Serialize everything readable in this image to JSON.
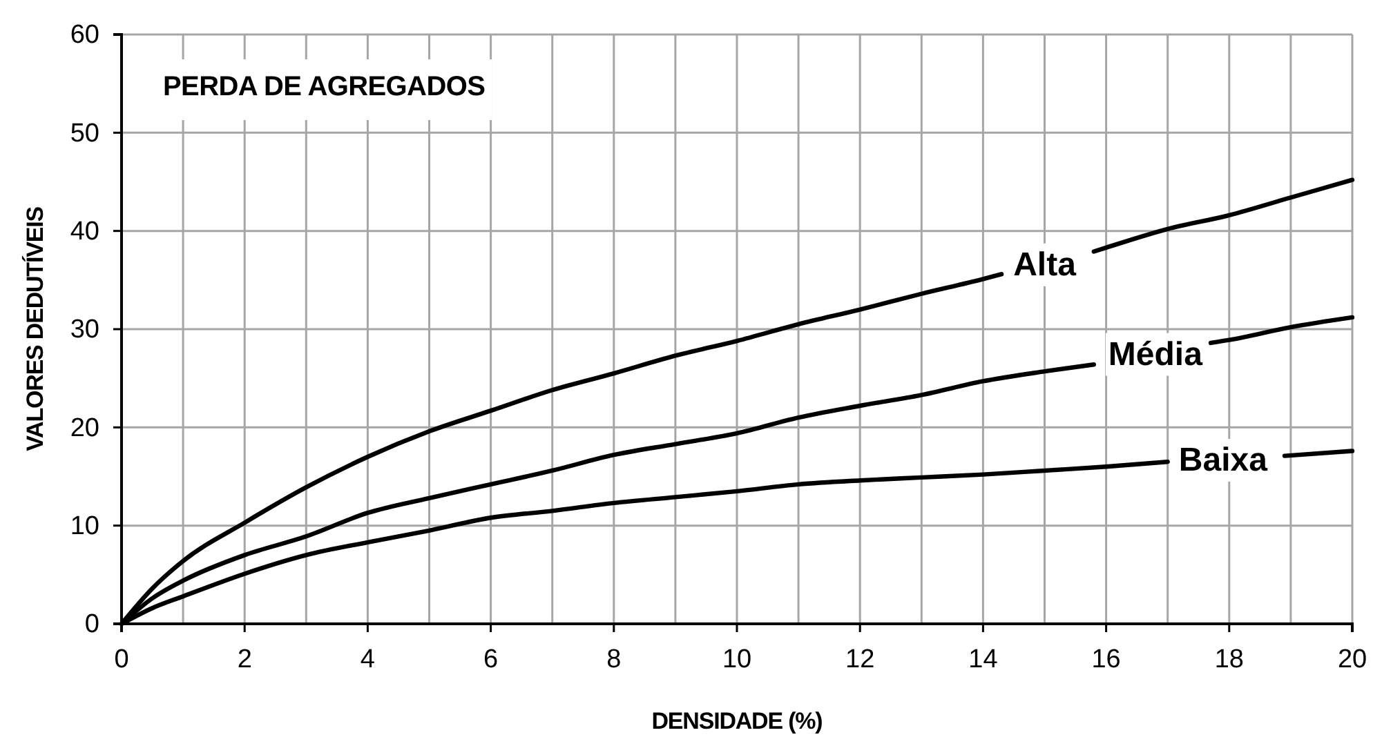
{
  "chart_data": {
    "type": "line",
    "title": "PERDA DE AGREGADOS",
    "xlabel": "DENSIDADE (%)",
    "ylabel": "VALORES DEDUTÍVEIS",
    "xlim": [
      0,
      20
    ],
    "ylim": [
      0,
      60
    ],
    "xticks": [
      0,
      {
        "value": 1,
        "label": null
      },
      2,
      {
        "value": 3,
        "label": null
      },
      4,
      {
        "value": 5,
        "label": null
      },
      6,
      {
        "value": 7,
        "label": null
      },
      8,
      {
        "value": 9,
        "label": null
      },
      10,
      {
        "value": 11,
        "label": null
      },
      12,
      {
        "value": 13,
        "label": null
      },
      14,
      {
        "value": 15,
        "label": null
      },
      16,
      {
        "value": 17,
        "label": null
      },
      18,
      {
        "value": 19,
        "label": null
      },
      20
    ],
    "yticks": [
      0,
      10,
      20,
      30,
      40,
      50,
      60
    ],
    "grid": true,
    "series": [
      {
        "name": "Alta",
        "color": "#000000",
        "x": [
          0,
          0.5,
          1,
          2,
          3,
          4,
          5,
          6,
          7,
          8,
          9,
          10,
          11,
          12,
          13,
          14,
          14.3,
          15,
          15.8,
          16,
          17,
          18,
          19,
          20
        ],
        "values": [
          0,
          3.6,
          6.4,
          10.3,
          13.9,
          17.0,
          19.6,
          21.7,
          23.8,
          25.5,
          27.3,
          28.8,
          30.5,
          32.0,
          33.6,
          35.1,
          35.6,
          null,
          37.9,
          38.3,
          40.2,
          41.6,
          43.4,
          45.2
        ]
      },
      {
        "name": "Média",
        "color": "#000000",
        "x": [
          0,
          0.5,
          1,
          2,
          3,
          4,
          5,
          6,
          7,
          8,
          9,
          10,
          11,
          12,
          13,
          14,
          15,
          15.8,
          16.8,
          17.7,
          18,
          19,
          20
        ],
        "values": [
          0,
          2.6,
          4.4,
          7.0,
          8.9,
          11.3,
          12.8,
          14.2,
          15.6,
          17.2,
          18.3,
          19.4,
          21.0,
          22.2,
          23.3,
          24.7,
          25.7,
          26.4,
          null,
          28.6,
          28.9,
          30.2,
          31.2
        ]
      },
      {
        "name": "Baixa",
        "color": "#000000",
        "x": [
          0,
          0.5,
          1,
          2,
          3,
          4,
          5,
          6,
          7,
          8,
          9,
          10,
          11,
          12,
          13,
          14,
          15,
          16,
          17,
          17.9,
          18.9,
          20
        ],
        "values": [
          0,
          1.6,
          2.8,
          5.1,
          7.0,
          8.3,
          9.5,
          10.8,
          11.5,
          12.3,
          12.9,
          13.5,
          14.2,
          14.6,
          14.9,
          15.2,
          15.6,
          16.0,
          16.5,
          null,
          17.1,
          17.6
        ]
      }
    ]
  }
}
